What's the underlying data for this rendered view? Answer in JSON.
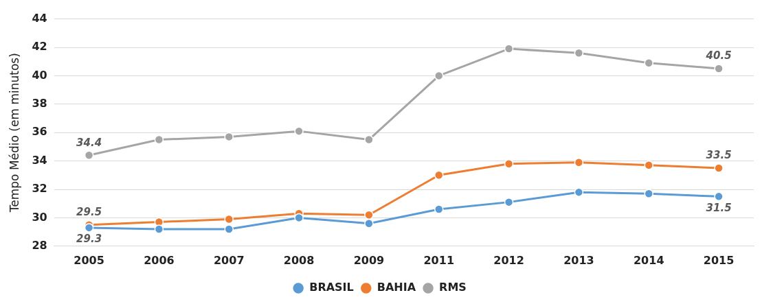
{
  "chart_data": {
    "type": "line",
    "ylabel": "Tempo Médio (em minutos)",
    "categories": [
      "2005",
      "2006",
      "2007",
      "2008",
      "2009",
      "2011",
      "2012",
      "2013",
      "2014",
      "2015"
    ],
    "series": [
      {
        "name": "BRASIL",
        "color": "#5b9bd5",
        "values": [
          29.3,
          29.2,
          29.2,
          30.0,
          29.6,
          30.6,
          31.1,
          31.8,
          31.7,
          31.5
        ],
        "value_labels": [
          "29.3",
          null,
          null,
          null,
          null,
          null,
          null,
          null,
          null,
          "31.5"
        ]
      },
      {
        "name": "BAHIA",
        "color": "#ed7d31",
        "values": [
          29.5,
          29.7,
          29.9,
          30.3,
          30.2,
          33.0,
          33.8,
          33.9,
          33.7,
          33.5
        ],
        "value_labels": [
          "29.5",
          null,
          null,
          null,
          null,
          null,
          null,
          null,
          null,
          "33.5"
        ]
      },
      {
        "name": "RMS",
        "color": "#a5a5a5",
        "values": [
          34.4,
          35.5,
          35.7,
          36.1,
          35.5,
          40.0,
          41.9,
          41.6,
          40.9,
          40.5
        ],
        "value_labels": [
          "34.4",
          null,
          null,
          null,
          null,
          null,
          null,
          null,
          null,
          "40.5"
        ]
      }
    ],
    "ylim": [
      28,
      44
    ],
    "yticks": [
      28,
      30,
      32,
      34,
      36,
      38,
      40,
      42,
      44
    ],
    "grid": "y",
    "legend": "bottom",
    "marker": "circle",
    "line_style": "solid"
  }
}
